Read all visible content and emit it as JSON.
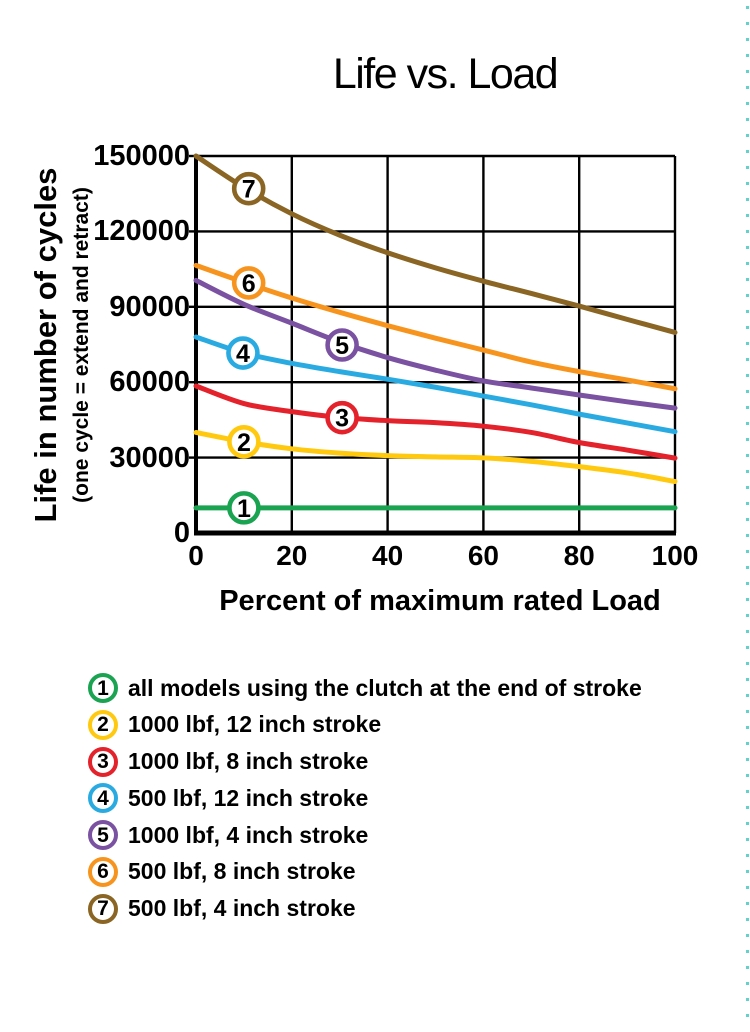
{
  "title": "Life vs. Load",
  "edge_marks_color": "#62d2cb",
  "chart_data": {
    "type": "line",
    "title": "Life vs. Load",
    "xlabel": "Percent of maximum rated Load",
    "ylabel": "Life in number of cycles",
    "ylabel_sub": "(one cycle = extend and retract)",
    "xlim": [
      0,
      100
    ],
    "ylim": [
      0,
      150000
    ],
    "xticks": [
      0,
      20,
      40,
      60,
      80,
      100
    ],
    "yticks": [
      0,
      30000,
      60000,
      90000,
      120000,
      150000
    ],
    "grid": true,
    "grid_color": "#000000",
    "legend_position": "below",
    "x": [
      0,
      10,
      20,
      30,
      40,
      50,
      60,
      70,
      80,
      90,
      100
    ],
    "series": [
      {
        "num": "1",
        "name": "all models using the clutch at the end of stroke",
        "color": "#1AA351",
        "values": [
          10000,
          10000,
          10000,
          10000,
          10000,
          10000,
          10000,
          10000,
          10000,
          10000,
          10000
        ],
        "marker": {
          "x": 10,
          "y": 10000
        }
      },
      {
        "num": "2",
        "name": "1000 lbf, 12 inch stroke",
        "color": "#FFC90F",
        "values": [
          40000,
          36300,
          33500,
          31800,
          30800,
          30300,
          29900,
          28500,
          26400,
          23900,
          20500
        ],
        "marker": {
          "x": 10,
          "y": 36300
        }
      },
      {
        "num": "3",
        "name": "1000 lbf, 8 inch stroke",
        "color": "#E3222B",
        "values": [
          58500,
          51500,
          48300,
          46000,
          44700,
          43900,
          42500,
          40000,
          36000,
          33000,
          29800
        ],
        "marker": {
          "x": 30.5,
          "y": 45900
        }
      },
      {
        "num": "4",
        "name": "500 lbf, 12 inch stroke",
        "color": "#29ABE2",
        "values": [
          78000,
          71600,
          67500,
          64200,
          61200,
          58000,
          54500,
          51000,
          47300,
          43800,
          40300
        ],
        "marker": {
          "x": 9.8,
          "y": 71600
        }
      },
      {
        "num": "5",
        "name": "1000 lbf, 4 inch stroke",
        "color": "#7A52A1",
        "values": [
          100500,
          91000,
          83500,
          76000,
          69800,
          64800,
          60500,
          57700,
          54900,
          52200,
          49700
        ],
        "marker": {
          "x": 30.5,
          "y": 74800
        }
      },
      {
        "num": "6",
        "name": "500 lbf, 8 inch stroke",
        "color": "#F7941E",
        "values": [
          106500,
          99800,
          93500,
          87800,
          82500,
          77500,
          72800,
          68000,
          64200,
          60900,
          57400
        ],
        "marker": {
          "x": 11,
          "y": 99500
        }
      },
      {
        "num": "7",
        "name": "500 lbf, 4 inch stroke",
        "color": "#8A6523",
        "values": [
          150000,
          137500,
          127000,
          118500,
          111500,
          105500,
          100200,
          95300,
          90300,
          85000,
          79800
        ],
        "marker": {
          "x": 11,
          "y": 137000
        }
      }
    ]
  }
}
